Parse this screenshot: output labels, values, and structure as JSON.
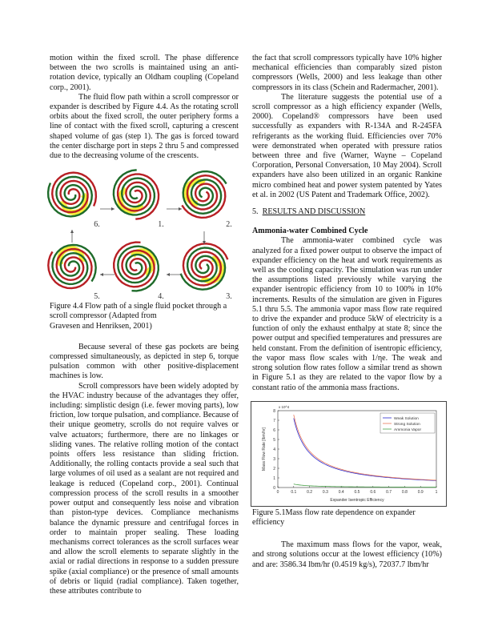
{
  "left_column": {
    "p1": "motion within the fixed scroll. The phase difference between the two scrolls is maintained using an anti-rotation device, typically an Oldham coupling (Copeland corp., 2001).",
    "p2": "The fluid flow path within a scroll compressor or expander is described by Figure 4.4.  As the rotating scroll orbits about the fixed scroll, the outer periphery forms a line of contact with the fixed scroll, capturing a crescent shaped volume of gas (step 1). The gas is forced toward the center discharge port in steps 2 thru 5 and compressed due to the decreasing volume of the crescents.",
    "figure_4_4": {
      "step_labels": [
        "6.",
        "1.",
        "2.",
        "5.",
        "4.",
        "3."
      ],
      "colors": {
        "fixed_scroll": "#1e6b2a",
        "orbiting_scroll": "#b81f24",
        "gas_pocket": "#f3ee3a"
      },
      "caption_lines": [
        "Figure 4.4 Flow path of a single fluid pocket through a",
        "scroll compressor (Adapted from",
        "Gravesen and Henriksen, 2001)"
      ]
    },
    "p3": "Because several of these gas pockets are being compressed simultaneously, as depicted in step 6, torque pulsation common with other positive-displacement machines is low.",
    "p4": "Scroll compressors have been widely adopted by the HVAC industry because of the advantages they offer, including: simplistic design (i.e. fewer moving parts), low friction, low torque pulsation, and compliance. Because of their unique geometry, scrolls do not require valves or valve actuators; furthermore, there are no linkages or sliding vanes. The relative rolling motion of the contact points offers less resistance than sliding friction. Additionally, the rolling contacts provide a seal such that large volumes of oil used as a sealant are not required and leakage is reduced (Copeland corp., 2001). Continual compression process of the scroll results in a smoother power output and consequently less noise and vibration than piston-type devices. Compliance mechanisms balance the dynamic pressure and centrifugal forces in order to maintain proper sealing. These loading mechanisms correct tolerances as the scroll surfaces wear and allow the scroll elements to separate slightly in the axial or radial directions in response to a sudden pressure spike (axial compliance) or  the presence of small amounts of debris or liquid (radial compliance). Taken together, these attributes contribute to"
  },
  "right_column": {
    "p1": "the fact that scroll compressors typically have 10% higher mechanical efficiencies than comparably sized piston compressors (Wells, 2000) and less leakage than other compressors in its class (Schein and Radermacher, 2001).",
    "p2": "The literature suggests the potential use of a scroll compressor as a high efficiency expander (Wells, 2000). Copeland® compressors have been used successfully as expanders with R-134A and R-245FA refrigerants as the working fluid. Efficiencies over 70% were demonstrated when operated with pressure ratios between three and five (Warner, Wayne – Copeland Corporation, Personal Conversation, 10 May 2004). Scroll expanders have also been utilized in an organic Rankine micro combined heat and power system patented by Yates et al. in 2002 (US Patent and Trademark Office, 2002).",
    "section_heading_number": "5.",
    "section_heading": "RESULTS AND DISCUSSION",
    "subheading": "Ammonia-water Combined Cycle",
    "p3": "The ammonia-water combined cycle was analyzed for a fixed power output to observe the impact of expander efficiency on the heat and work requirements as well as the cooling capacity. The simulation was run under the assumptions listed previously while varying the expander isentropic efficiency from 10 to 100% in 10% increments. Results of the simulation are given in Figures 5.1 thru 5.5. The ammonia vapor mass flow rate required to drive the expander and produce 5kW of electricity is a function of only the exhaust enthalpy at state 8; since the power output and specified temperatures and pressures are held constant. From the definition of isentropic efficiency, the vapor mass flow scales with 1/ηe. The weak and strong solution flow rates follow a similar trend as shown in Figure 5.1 as they are related to the vapor flow by a constant ratio of the ammonia mass fractions.",
    "figure_5_1_caption": "Figure 5.1Mass flow rate dependence on expander efficiency",
    "p4": "The maximum mass flows for the vapor, weak, and strong solutions occur at the lowest efficiency (10%) and are: 3586.34 lbm/hr (0.4519 kg/s), 72037.7 lbm/hr"
  },
  "chart_data": {
    "type": "line",
    "title": "",
    "xlabel": "Expander Isentropic Efficiency",
    "ylabel": "Mass Flow Rate [lbm/hr]",
    "y_multiplier": "x 10^4",
    "xlim": [
      0,
      1
    ],
    "ylim": [
      0,
      80000
    ],
    "xticks": [
      "0",
      "0.1",
      "0.2",
      "0.3",
      "0.4",
      "0.5",
      "0.6",
      "0.7",
      "0.8",
      "0.9",
      "1"
    ],
    "yticks": [
      "0",
      "1",
      "2",
      "3",
      "4",
      "5",
      "6",
      "7",
      "8"
    ],
    "grid": false,
    "legend_position": "top-right",
    "x": [
      0.1,
      0.2,
      0.3,
      0.4,
      0.5,
      0.6,
      0.7,
      0.8,
      0.9,
      1.0
    ],
    "series": [
      {
        "name": "Weak Solution",
        "color": "#2b2bd0",
        "values": [
          72038,
          36019,
          24013,
          18009,
          14408,
          12006,
          10291,
          9005,
          8004,
          7204
        ]
      },
      {
        "name": "Strong Solution",
        "color": "#e8785a",
        "values": [
          75800,
          37900,
          25267,
          18950,
          15160,
          12633,
          10829,
          9475,
          8422,
          7580
        ]
      },
      {
        "name": "Ammonia Vapor",
        "color": "#4aa24a",
        "values": [
          3586,
          1793,
          1195,
          897,
          717,
          598,
          512,
          448,
          398,
          359
        ]
      }
    ]
  }
}
